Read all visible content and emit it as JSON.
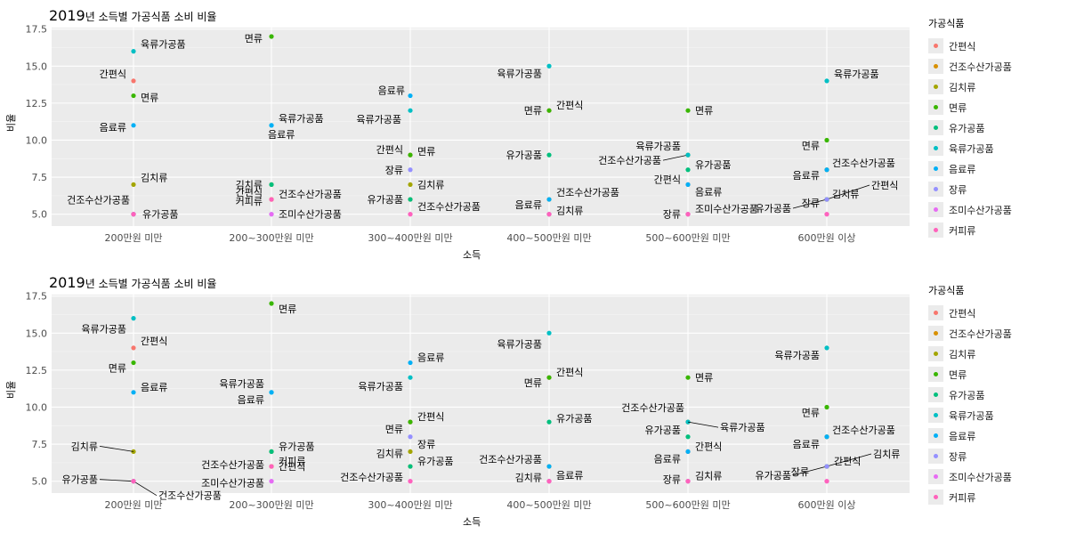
{
  "chart_data": [
    {
      "type": "scatter",
      "title_year": "2019",
      "title_rest": "년 소득별 가공식품 소비 비율",
      "xlabel": "소득",
      "ylabel": "비율",
      "legend_title": "가공식품",
      "legend_position": "right",
      "categories": [
        "200만원 미만",
        "200~300만원 미만",
        "300~400만원 미만",
        "400~500만원 미만",
        "500~600만원 미만",
        "600만원 이상"
      ],
      "ylim": [
        4.2,
        17.6
      ],
      "yticks": [
        "5.0",
        "7.5",
        "10.0",
        "12.5",
        "15.0",
        "17.5"
      ],
      "series": [
        {
          "name": "간편식",
          "values": [
            14.0,
            6.0,
            9.0,
            12.0,
            7.0,
            6.0
          ]
        },
        {
          "name": "건조수산가공품",
          "values": [
            5.0,
            6.0,
            6.0,
            6.0,
            9.0,
            8.0
          ]
        },
        {
          "name": "김치류",
          "values": [
            7.0,
            7.0,
            7.0,
            5.0,
            5.0,
            6.0
          ]
        },
        {
          "name": "면류",
          "values": [
            13.0,
            17.0,
            9.0,
            12.0,
            12.0,
            10.0
          ]
        },
        {
          "name": "유가공품",
          "values": [
            5.0,
            7.0,
            6.0,
            9.0,
            8.0,
            6.0
          ]
        },
        {
          "name": "육류가공품",
          "values": [
            16.0,
            11.0,
            12.0,
            15.0,
            9.0,
            14.0
          ]
        },
        {
          "name": "음료류",
          "values": [
            11.0,
            11.0,
            13.0,
            6.0,
            7.0,
            8.0
          ]
        },
        {
          "name": "장류",
          "values": [
            5.0,
            5.0,
            8.0,
            5.0,
            5.0,
            6.0
          ]
        },
        {
          "name": "조미수산가공품",
          "values": [
            5.0,
            5.0,
            5.0,
            5.0,
            5.0,
            5.0
          ]
        },
        {
          "name": "커피류",
          "values": [
            5.0,
            6.0,
            5.0,
            5.0,
            5.0,
            5.0
          ]
        }
      ],
      "colors": [
        "#F8766D",
        "#D89000",
        "#A3A500",
        "#39B600",
        "#00BF7D",
        "#00BFC4",
        "#00B0F6",
        "#9590FF",
        "#E76BF3",
        "#FF62BC"
      ]
    },
    {
      "type": "scatter",
      "title_year": "2019",
      "title_rest": "년 소득별 가공식품 소비 비율",
      "xlabel": "소득",
      "ylabel": "비율",
      "legend_title": "가공식품",
      "legend_position": "right",
      "categories": [
        "200만원 미만",
        "200~300만원 미만",
        "300~400만원 미만",
        "400~500만원 미만",
        "500~600만원 미만",
        "600만원 이상"
      ],
      "ylim": [
        4.2,
        17.6
      ],
      "yticks": [
        "5.0",
        "7.5",
        "10.0",
        "12.5",
        "15.0",
        "17.5"
      ],
      "series": [
        {
          "name": "간편식",
          "values": [
            14.0,
            6.0,
            9.0,
            12.0,
            7.0,
            6.0
          ]
        },
        {
          "name": "건조수산가공품",
          "values": [
            5.0,
            6.0,
            6.0,
            6.0,
            9.0,
            8.0
          ]
        },
        {
          "name": "김치류",
          "values": [
            7.0,
            7.0,
            7.0,
            5.0,
            5.0,
            6.0
          ]
        },
        {
          "name": "면류",
          "values": [
            13.0,
            17.0,
            9.0,
            12.0,
            12.0,
            10.0
          ]
        },
        {
          "name": "유가공품",
          "values": [
            5.0,
            7.0,
            6.0,
            9.0,
            8.0,
            6.0
          ]
        },
        {
          "name": "육류가공품",
          "values": [
            16.0,
            11.0,
            12.0,
            15.0,
            9.0,
            14.0
          ]
        },
        {
          "name": "음료류",
          "values": [
            11.0,
            11.0,
            13.0,
            6.0,
            7.0,
            8.0
          ]
        },
        {
          "name": "장류",
          "values": [
            5.0,
            5.0,
            8.0,
            5.0,
            5.0,
            6.0
          ]
        },
        {
          "name": "조미수산가공품",
          "values": [
            5.0,
            5.0,
            5.0,
            5.0,
            5.0,
            5.0
          ]
        },
        {
          "name": "커피류",
          "values": [
            5.0,
            6.0,
            5.0,
            5.0,
            5.0,
            5.0
          ]
        }
      ],
      "colors": [
        "#F8766D",
        "#D89000",
        "#A3A500",
        "#39B600",
        "#00BF7D",
        "#00BFC4",
        "#00B0F6",
        "#9590FF",
        "#E76BF3",
        "#FF62BC"
      ]
    }
  ]
}
